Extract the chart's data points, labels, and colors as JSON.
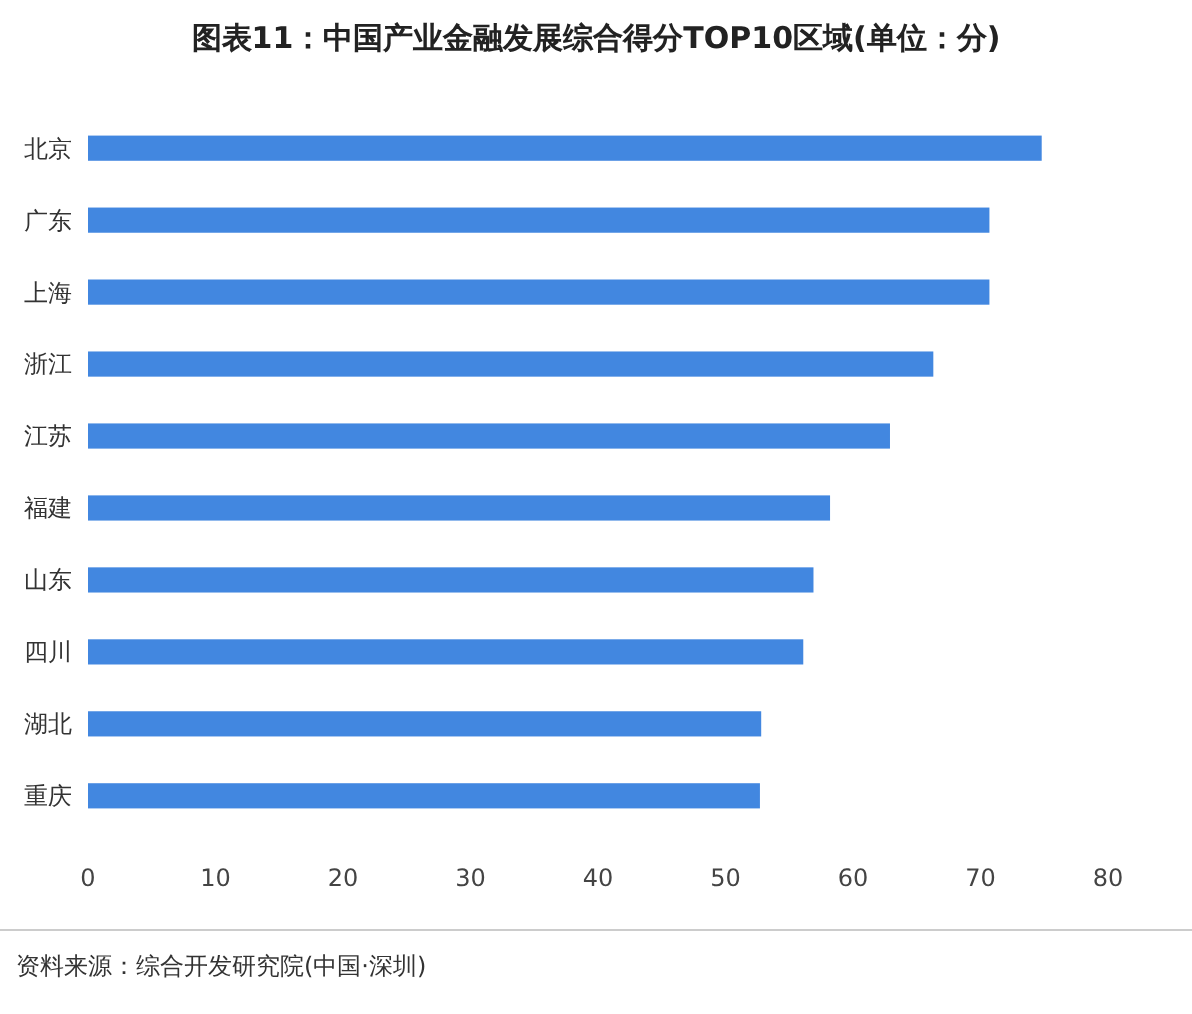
{
  "chart_data": {
    "type": "bar",
    "orientation": "horizontal",
    "title": "图表11：中国产业金融发展综合得分TOP10区域(单位：分)",
    "categories": [
      "北京",
      "广东",
      "上海",
      "浙江",
      "江苏",
      "福建",
      "山东",
      "四川",
      "湖北",
      "重庆"
    ],
    "values": [
      74.8,
      70.7,
      70.7,
      66.3,
      62.9,
      58.2,
      56.9,
      56.1,
      52.8,
      52.7
    ],
    "color": "#4287e0",
    "xlim": [
      0,
      80
    ],
    "xticks": [
      0,
      10,
      20,
      30,
      40,
      50,
      60,
      70,
      80
    ],
    "grid": false,
    "annotations": [
      "资料来源：综合开发研究院(中国·深圳)"
    ]
  }
}
